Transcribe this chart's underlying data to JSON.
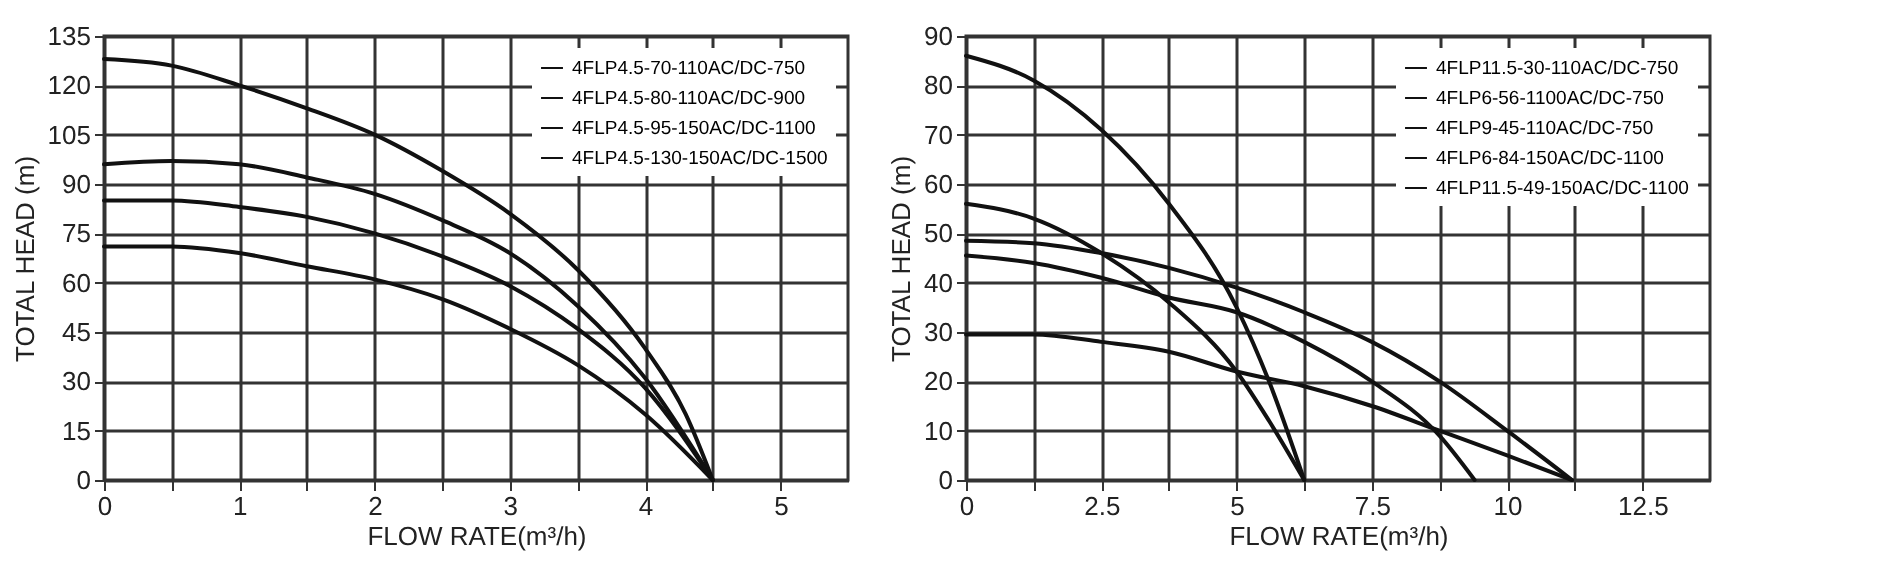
{
  "chart_data": [
    {
      "type": "line",
      "xlabel": "FLOW RATE(m³/h)",
      "ylabel": "TOTAL HEAD  (m)",
      "xlim": [
        0,
        5.5
      ],
      "ylim": [
        0,
        135
      ],
      "xticks": [
        0,
        {
          "value": 0.5,
          "label": null
        },
        1,
        {
          "value": 1.5,
          "label": null
        },
        2,
        {
          "value": 2.5,
          "label": null
        },
        3,
        {
          "value": 3.5,
          "label": null
        },
        4,
        {
          "value": 4.5,
          "label": null
        },
        5
      ],
      "yticks": [
        0,
        15,
        30,
        45,
        60,
        75,
        90,
        105,
        120,
        135
      ],
      "grid": true,
      "legend": "top right",
      "series": [
        {
          "name": "4FLP4.5-70-110AC/DC-750",
          "color": "#111111",
          "x": [
            0,
            0.5,
            1,
            1.5,
            2,
            2.5,
            3,
            3.5,
            4,
            4.5
          ],
          "values": [
            71,
            71,
            69,
            65,
            61,
            55,
            46,
            35,
            20,
            0
          ]
        },
        {
          "name": "4FLP4.5-80-110AC/DC-900",
          "color": "#111111",
          "x": [
            0,
            0.5,
            1,
            1.5,
            2,
            2.5,
            3,
            3.5,
            4,
            4.5
          ],
          "values": [
            85,
            85,
            83,
            80,
            75,
            68,
            59,
            46,
            28,
            0
          ]
        },
        {
          "name": "4FLP4.5-95-150AC/DC-1100",
          "color": "#111111",
          "x": [
            0,
            0.5,
            1,
            1.5,
            2,
            2.5,
            3,
            3.5,
            4,
            4.5
          ],
          "values": [
            96,
            97,
            96,
            92,
            87,
            79,
            69,
            53,
            31,
            0
          ]
        },
        {
          "name": "4FLP4.5-130-150AC/DC-1500",
          "color": "#111111",
          "x": [
            0,
            0.5,
            1,
            1.5,
            2,
            2.5,
            3,
            3.5,
            4,
            4.3,
            4.5
          ],
          "values": [
            128,
            126,
            120,
            113,
            105,
            94,
            81,
            64,
            40,
            20,
            0
          ]
        }
      ]
    },
    {
      "type": "line",
      "xlabel": "FLOW RATE(m³/h)",
      "ylabel": "TOTAL HEAD  (m)",
      "xlim": [
        0,
        13.75
      ],
      "ylim": [
        0,
        90
      ],
      "xticks": [
        0,
        {
          "value": 1.25,
          "label": null
        },
        {
          "value": 2.5,
          "label": "2.5"
        },
        {
          "value": 3.75,
          "label": null
        },
        5,
        {
          "value": 6.25,
          "label": null
        },
        {
          "value": 7.5,
          "label": "7.5"
        },
        {
          "value": 8.75,
          "label": null
        },
        10,
        {
          "value": 11.25,
          "label": null
        },
        {
          "value": 12.5,
          "label": "12.5"
        }
      ],
      "yticks": [
        0,
        10,
        20,
        30,
        40,
        50,
        60,
        70,
        80,
        90
      ],
      "grid": true,
      "legend": "top right",
      "series": [
        {
          "name": "4FLP11.5-30-110AC/DC-750",
          "color": "#111111",
          "x": [
            0,
            1.25,
            2.5,
            3.75,
            5,
            6.25,
            7.5,
            8.75,
            10,
            11.2
          ],
          "values": [
            29.5,
            29.5,
            28,
            26,
            22,
            19,
            15,
            10,
            5,
            0
          ]
        },
        {
          "name": "4FLP6-56-1100AC/DC-750",
          "color": "#111111",
          "x": [
            0,
            1.25,
            2.5,
            3.75,
            5,
            5.6,
            6.25
          ],
          "values": [
            56,
            53,
            46,
            36,
            22,
            12,
            0
          ]
        },
        {
          "name": "4FLP9-45-110AC/DC-750",
          "color": "#111111",
          "x": [
            0,
            1.25,
            2.5,
            3.75,
            5,
            6.25,
            7.5,
            8.75,
            9.4
          ],
          "values": [
            45.5,
            44,
            41,
            37,
            34,
            28,
            20,
            9,
            0
          ]
        },
        {
          "name": "4FLP6-84-150AC/DC-1100",
          "color": "#111111",
          "x": [
            0,
            1.25,
            2.5,
            3.75,
            5,
            5.6,
            6.25
          ],
          "values": [
            86,
            81,
            71,
            56,
            35,
            20,
            0
          ]
        },
        {
          "name": "4FLP11.5-49-150AC/DC-1100",
          "color": "#111111",
          "x": [
            0,
            1.25,
            2.5,
            3.75,
            5,
            6.25,
            7.5,
            8.75,
            10,
            11.2
          ],
          "values": [
            48.5,
            48,
            46,
            43,
            39,
            34,
            28,
            20,
            10,
            0
          ]
        }
      ]
    }
  ]
}
